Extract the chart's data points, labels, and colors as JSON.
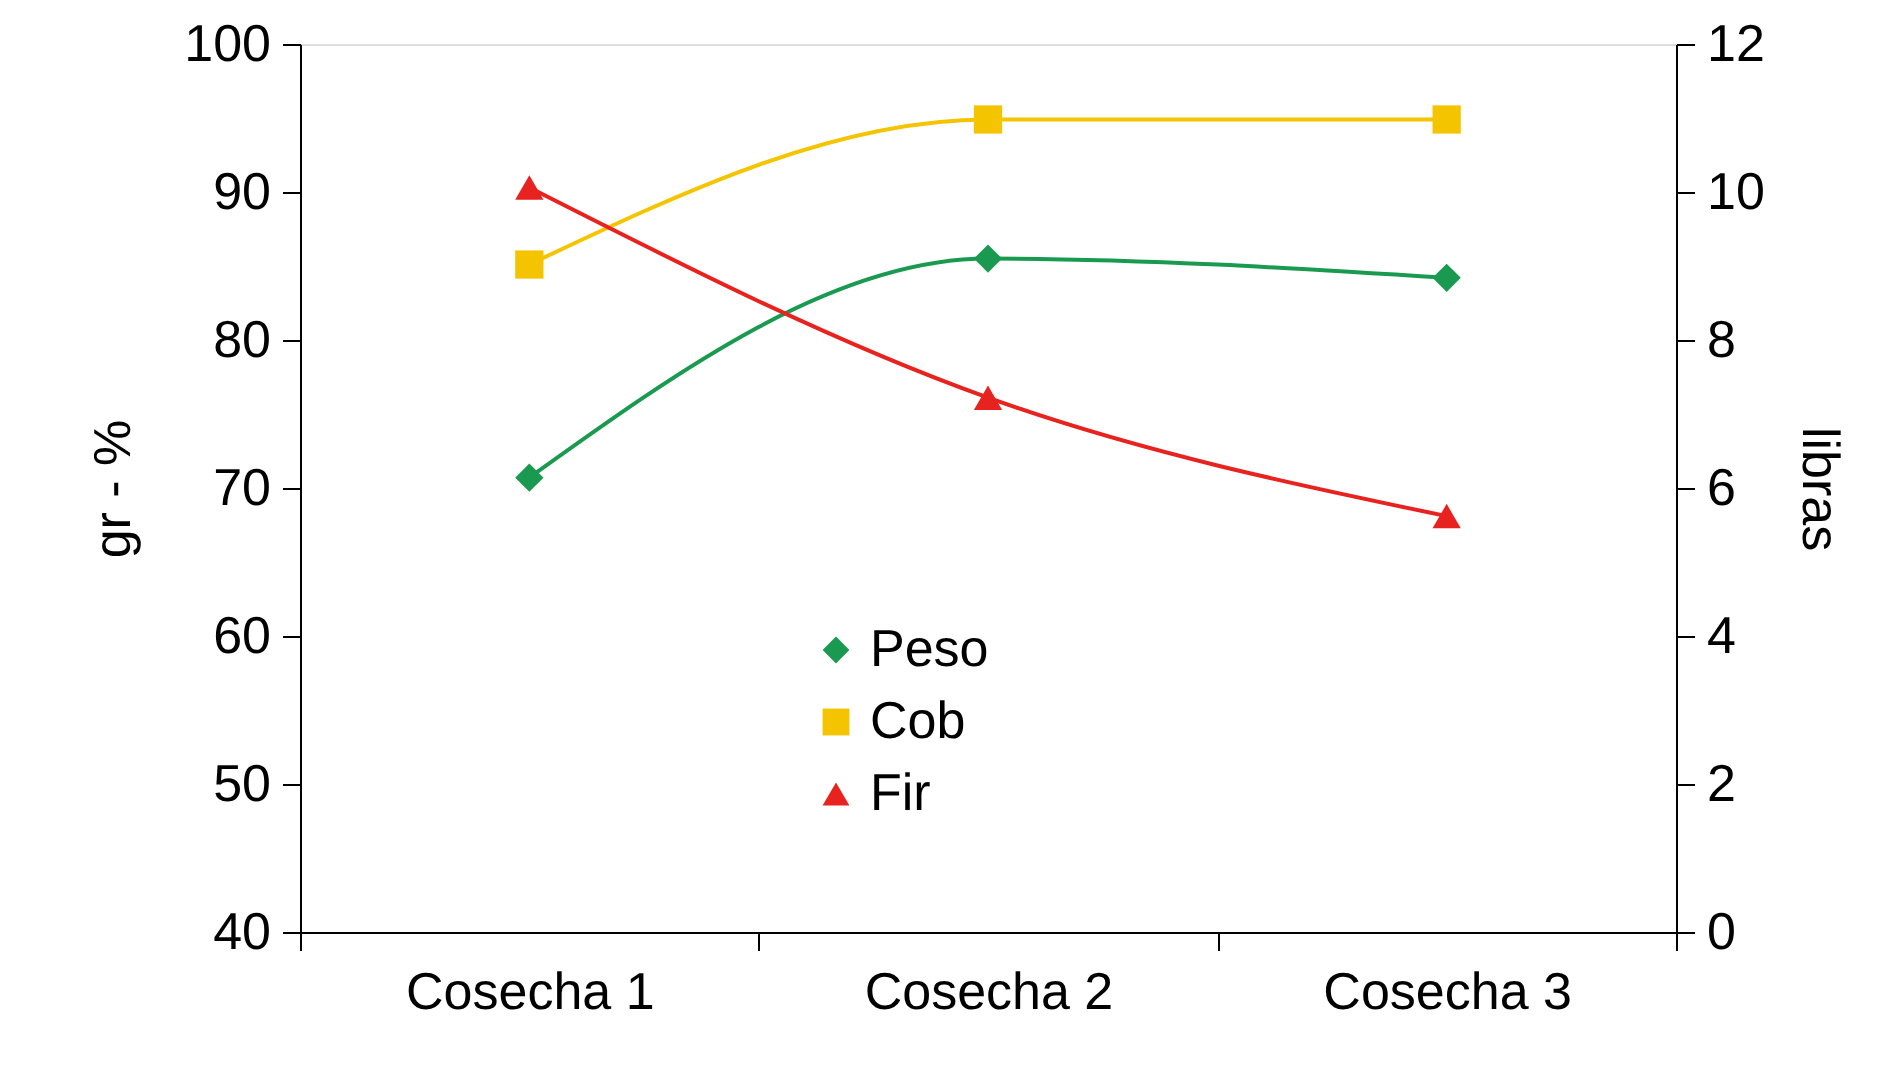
{
  "chart_data": {
    "type": "line",
    "categories": [
      "Cosecha 1",
      "Cosecha 2",
      "Cosecha 3"
    ],
    "series": [
      {
        "name": "Peso",
        "color": "#1a9a50",
        "marker": "diamond",
        "values": [
          70.7,
          85.5,
          84.2
        ]
      },
      {
        "name": "Cob",
        "color": "#f5c400",
        "marker": "square",
        "values": [
          85.1,
          94.9,
          94.9
        ]
      },
      {
        "name": "Fir",
        "color": "#e8231f",
        "marker": "triangle",
        "values": [
          90.3,
          76.1,
          68.1
        ]
      }
    ],
    "ylabel": "gr   -   %",
    "y2label": "libras",
    "ylim": [
      40,
      100
    ],
    "yticks": [
      40,
      50,
      60,
      70,
      80,
      90,
      100
    ],
    "y2lim": [
      0,
      12
    ],
    "y2ticks": [
      0,
      2,
      4,
      6,
      8,
      10,
      12
    ],
    "grid": false,
    "legend": "bottom",
    "line_style": "solid"
  }
}
